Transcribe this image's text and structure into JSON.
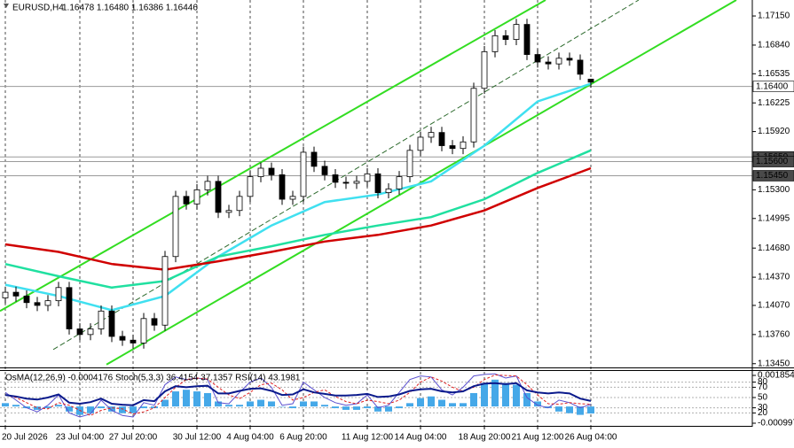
{
  "chart_data": {
    "type": "candlestick",
    "title": "EURUSD,H4",
    "subtitle": "1.16478 1.16480 1.16386 1.16446",
    "categories": [
      "20 Jul 2026",
      null,
      null,
      null,
      null,
      null,
      null,
      "23 Jul 04:00",
      null,
      null,
      null,
      null,
      "27 Jul 20:00",
      null,
      null,
      null,
      null,
      null,
      "30 Jul 12:00",
      null,
      null,
      null,
      null,
      "4 Aug 04:00",
      null,
      null,
      null,
      null,
      "6 Aug 20:00",
      null,
      null,
      null,
      null,
      null,
      "11 Aug 12:00",
      null,
      null,
      null,
      null,
      "14 Aug 04:00",
      null,
      null,
      null,
      null,
      null,
      "18 Aug 20:00",
      null,
      null,
      null,
      null,
      "21 Aug 12:00",
      null,
      null,
      null,
      null,
      "26 Aug 04:00"
    ],
    "open": [
      1.1415,
      1.1421,
      1.1417,
      1.141,
      1.1407,
      1.1412,
      1.1426,
      1.1382,
      1.1376,
      1.1382,
      1.1401,
      1.1374,
      1.137,
      1.1367,
      1.1393,
      1.1386,
      1.1459,
      1.1523,
      1.1515,
      1.153,
      1.1539,
      1.1506,
      1.1508,
      1.1523,
      1.1544,
      1.1553,
      1.1546,
      1.152,
      1.1523,
      1.157,
      1.1555,
      1.1546,
      1.1538,
      1.1537,
      1.1539,
      1.1547,
      1.1527,
      1.1531,
      1.1544,
      1.1572,
      1.1586,
      1.1591,
      1.1577,
      1.1574,
      1.1581,
      1.1638,
      1.1677,
      1.1694,
      1.169,
      1.1706,
      1.1674,
      1.1666,
      1.1664,
      1.167,
      1.1668,
      1.16478
    ],
    "high": [
      1.1427,
      1.1427,
      1.1423,
      1.1416,
      1.1418,
      1.1432,
      1.1432,
      1.1388,
      1.1388,
      1.1407,
      1.1407,
      1.138,
      1.1376,
      1.1399,
      1.1399,
      1.1465,
      1.1529,
      1.1529,
      1.1536,
      1.1545,
      1.1545,
      1.1514,
      1.1529,
      1.155,
      1.1559,
      1.1559,
      1.1552,
      1.1529,
      1.1576,
      1.1576,
      1.1561,
      1.1552,
      1.1544,
      1.1545,
      1.1553,
      1.1553,
      1.1537,
      1.155,
      1.1578,
      1.1592,
      1.1597,
      1.1597,
      1.1583,
      1.1587,
      1.1644,
      1.1683,
      1.17,
      1.17,
      1.1712,
      1.1712,
      1.168,
      1.1672,
      1.1676,
      1.1676,
      1.1674,
      1.1648
    ],
    "low": [
      1.1409,
      1.1411,
      1.1404,
      1.1401,
      1.1401,
      1.1406,
      1.1376,
      1.137,
      1.137,
      1.1376,
      1.1368,
      1.1364,
      1.1361,
      1.1361,
      1.138,
      1.138,
      1.1453,
      1.1509,
      1.1509,
      1.1524,
      1.15,
      1.15,
      1.1502,
      1.1517,
      1.1538,
      1.154,
      1.1514,
      1.1514,
      1.1517,
      1.1549,
      1.154,
      1.1532,
      1.1531,
      1.1531,
      1.1533,
      1.1521,
      1.1521,
      1.1525,
      1.1538,
      1.1566,
      1.158,
      1.1571,
      1.1568,
      1.1568,
      1.1575,
      1.1632,
      1.1671,
      1.1684,
      1.1684,
      1.1668,
      1.166,
      1.1658,
      1.1658,
      1.1662,
      1.1647,
      1.16386
    ],
    "close": [
      1.1421,
      1.1417,
      1.141,
      1.1407,
      1.1412,
      1.1426,
      1.1382,
      1.1376,
      1.1382,
      1.1401,
      1.1374,
      1.137,
      1.1367,
      1.1393,
      1.1386,
      1.1459,
      1.1523,
      1.1515,
      1.153,
      1.1539,
      1.1506,
      1.1508,
      1.1523,
      1.1544,
      1.1553,
      1.1546,
      1.152,
      1.1523,
      1.157,
      1.1555,
      1.1546,
      1.1538,
      1.1537,
      1.1539,
      1.1547,
      1.1527,
      1.1531,
      1.1544,
      1.1572,
      1.1586,
      1.1591,
      1.1577,
      1.1574,
      1.1581,
      1.1638,
      1.1677,
      1.1694,
      1.169,
      1.1706,
      1.1674,
      1.1666,
      1.1664,
      1.167,
      1.1668,
      1.1653,
      1.16446
    ],
    "up_color": "#ffffff",
    "down_color": "#000000",
    "edge_color": "#000000",
    "ylim": [
      1.1341,
      1.1732
    ],
    "yticks": [
      {
        "value": 1.1715,
        "label": "1.17150"
      },
      {
        "value": 1.1684,
        "label": "1.16840"
      },
      1.16535,
      1.16225,
      {
        "value": 1.1592,
        "label": "1.15920"
      },
      {
        "value": 1.153,
        "label": "1.15300"
      },
      1.14995,
      {
        "value": 1.1468,
        "label": "1.14680"
      },
      {
        "value": 1.1437,
        "label": "1.14370"
      },
      {
        "value": 1.1407,
        "label": "1.14070"
      },
      {
        "value": 1.1376,
        "label": "1.13760"
      },
      {
        "value": 1.1345,
        "label": "1.13450"
      }
    ],
    "grid": true,
    "series": [
      {
        "color": "#40e0f0",
        "x": [
          0,
          5,
          10,
          15,
          20,
          25,
          30,
          35,
          40,
          45,
          50,
          55
        ],
        "values": [
          1.1429,
          1.1417,
          1.1402,
          1.1417,
          1.1459,
          1.1492,
          1.1517,
          1.1525,
          1.1539,
          1.1577,
          1.1624,
          1.1643
        ]
      },
      {
        "color": "#20e0a0",
        "x": [
          0,
          5,
          10,
          15,
          20,
          25,
          30,
          35,
          40,
          45,
          50,
          55
        ],
        "values": [
          1.1451,
          1.1438,
          1.1426,
          1.1433,
          1.1459,
          1.147,
          1.1482,
          1.1492,
          1.1501,
          1.152,
          1.1548,
          1.1572
        ]
      },
      {
        "color": "#d00000",
        "x": [
          0,
          5,
          10,
          15,
          20,
          25,
          30,
          35,
          40,
          45,
          50,
          55
        ],
        "values": [
          1.1472,
          1.1464,
          1.1451,
          1.1445,
          1.1454,
          1.1464,
          1.1475,
          1.1482,
          1.1492,
          1.1508,
          1.1532,
          1.1553
        ]
      }
    ],
    "trendlines": [
      {
        "color": "#33dd22",
        "x": [
          -0.5,
          50.75
        ],
        "values": [
          1.1401,
          1.1732
        ]
      },
      {
        "color": "#2e6b2e",
        "x": [
          4.5,
          59.5
        ],
        "values": [
          1.136,
          1.1732
        ]
      },
      {
        "color": "#33dd22",
        "x": [
          9.5,
          68.67
        ],
        "values": [
          1.1344,
          1.1732
        ]
      }
    ],
    "levels": [
      {
        "value": 1.164,
        "label": "1.16400"
      },
      {
        "value": 1.1565,
        "label": "1.15650"
      },
      {
        "value": 1.156,
        "label": "1.15600"
      },
      {
        "value": 1.1545,
        "label": "1.15450"
      }
    ],
    "indicators": {
      "label": "OsMA(12,26,9) -0.0004176  Stoch(5,3,3) 36.4154 37.1357  RSI(14) 43.1981",
      "osma": {
        "color": "#45a8e8",
        "ylim": [
          -0.000997,
          0.001854
        ],
        "yticks": [
          0.001854,
          -0.000997
        ],
        "values": [
          0.0002,
          0.0001,
          -0.0001,
          -0.0002,
          -0.0001,
          0.0001,
          -0.0003,
          -0.0005,
          -0.0004,
          -0.0001,
          -0.0003,
          -0.0004,
          -0.0004,
          -0.0001,
          -0.0001,
          0.0004,
          0.0009,
          0.001,
          0.0009,
          0.0008,
          0.0003,
          0.0001,
          0.0001,
          0.0003,
          0.0004,
          0.0003,
          0,
          -0.0001,
          0.0003,
          0.0003,
          0.0001,
          -0.0001,
          -0.0002,
          -0.0002,
          -0.0001,
          -0.0003,
          -0.0003,
          -0.0001,
          0.0002,
          0.0005,
          0.0006,
          0.0004,
          0.0002,
          0.0002,
          0.0008,
          0.0014,
          0.0016,
          0.0014,
          0.0013,
          0.0008,
          0.0003,
          -0.0001,
          -0.0003,
          -0.0004,
          -0.0005,
          -0.0004176
        ]
      },
      "y2lim": [
        0,
        100
      ],
      "y2ticks": [
        80,
        70,
        50,
        30,
        20
      ],
      "stoch_main": {
        "color": "#5a4fcf",
        "values": [
          60,
          45,
          30,
          22,
          35,
          55,
          20,
          12,
          18,
          45,
          25,
          15,
          12,
          40,
          35,
          75,
          90,
          85,
          88,
          85,
          40,
          38,
          60,
          80,
          88,
          70,
          35,
          38,
          80,
          65,
          50,
          40,
          35,
          38,
          55,
          30,
          35,
          60,
          85,
          92,
          90,
          65,
          55,
          70,
          92,
          95,
          96,
          88,
          92,
          50,
          35,
          30,
          45,
          40,
          30,
          36.4154
        ]
      },
      "stoch_signal": {
        "color": "#e02020",
        "values": [
          55,
          50,
          40,
          30,
          28,
          40,
          35,
          25,
          15,
          25,
          30,
          28,
          18,
          22,
          30,
          50,
          70,
          85,
          88,
          86,
          70,
          55,
          48,
          60,
          75,
          78,
          65,
          45,
          50,
          60,
          65,
          52,
          42,
          38,
          45,
          42,
          38,
          45,
          60,
          80,
          90,
          82,
          70,
          62,
          70,
          85,
          94,
          93,
          92,
          75,
          55,
          38,
          37,
          40,
          38,
          37.1357
        ]
      },
      "rsi": {
        "color": "#0a1a8c",
        "values": [
          55,
          52,
          48,
          46,
          50,
          56,
          40,
          38,
          41,
          48,
          38,
          36,
          35,
          45,
          43,
          62,
          72,
          70,
          72,
          73,
          58,
          58,
          63,
          67,
          68,
          63,
          55,
          56,
          66,
          60,
          57,
          54,
          54,
          55,
          57,
          51,
          52,
          56,
          63,
          66,
          67,
          62,
          60,
          62,
          72,
          77,
          78,
          76,
          78,
          64,
          60,
          58,
          60,
          58,
          48,
          43.1981
        ]
      }
    }
  }
}
